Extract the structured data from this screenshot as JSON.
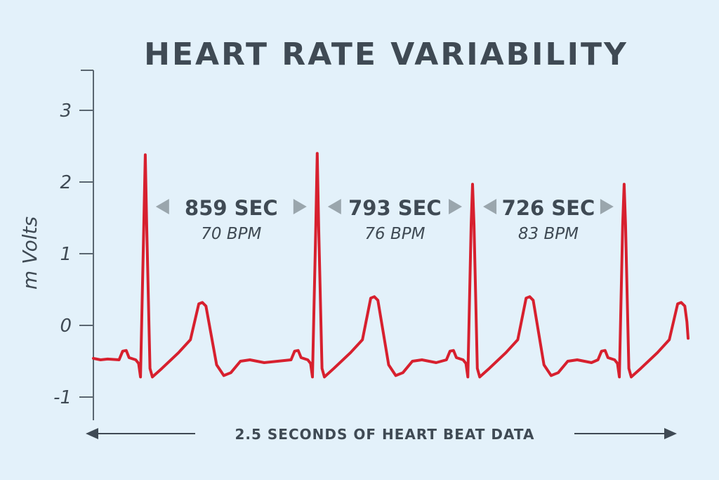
{
  "chart_data": {
    "type": "line",
    "title": "HEART RATE VARIABILITY",
    "ylabel": "m Volts",
    "xlabel": "2.5 SECONDS OF HEART BEAT DATA",
    "xlim": [
      0,
      2.5
    ],
    "ylim": [
      -1.35,
      3.55
    ],
    "yticks": [
      "3",
      "2",
      "1",
      "0",
      "-1"
    ],
    "ytick_values": [
      3,
      2,
      1,
      0,
      -1
    ],
    "grid": false,
    "baseline_mV": -0.48,
    "beats": [
      {
        "r_time_s": 0.218,
        "r_peak_mV": 2.38,
        "t_wave_mV": 0.32
      },
      {
        "r_time_s": 0.941,
        "r_peak_mV": 2.4,
        "t_wave_mV": 0.4
      },
      {
        "r_time_s": 1.594,
        "r_peak_mV": 1.97,
        "t_wave_mV": 0.4
      },
      {
        "r_time_s": 2.231,
        "r_peak_mV": 1.97,
        "t_wave_mV": 0.32
      }
    ],
    "end_value_mV": -0.18,
    "intervals": [
      {
        "label": "859 SEC",
        "bpm": "70 BPM"
      },
      {
        "label": "793 SEC",
        "bpm": "76 BPM"
      },
      {
        "label": "726 SEC",
        "bpm": "83 BPM"
      }
    ],
    "colors": {
      "trace": "#d7202e",
      "text": "#3f4a54",
      "arrows": "#9aa6ad",
      "background": "#e3f1fa"
    }
  }
}
